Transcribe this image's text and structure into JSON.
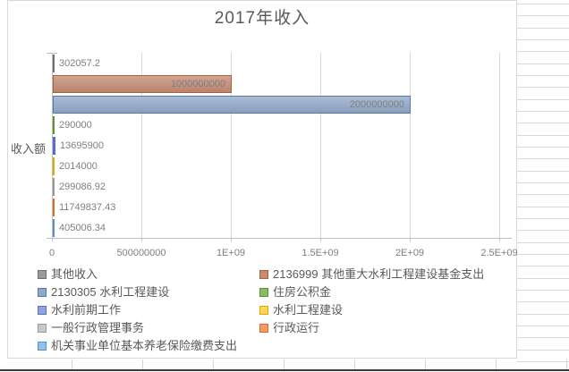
{
  "chart_data": {
    "type": "bar",
    "orientation": "horizontal",
    "title": "2017年收入",
    "xlabel": "",
    "ylabel": "收入额",
    "categories": [
      "其他收入",
      "2136999 其他重大水利工程建设基金支出",
      "2130305 水利工程建设",
      "住房公积金",
      "水利前期工作",
      "水利工程建设",
      "一般行政管理事务",
      "行政运行",
      "机关事业单位基本养老保险缴费支出"
    ],
    "values": [
      302057.2,
      1000000000,
      2000000000,
      290000,
      13695900,
      2014000,
      299086.92,
      11749837.43,
      405006.34
    ],
    "data_labels": [
      "302057.2",
      "1000000000",
      "2000000000",
      "290000",
      "13695900",
      "2014000",
      "299086.92",
      "11749837.43",
      "405006.34"
    ],
    "series_colors": [
      {
        "fill": "#9A9A9A",
        "border": "#6F6F6F"
      },
      {
        "fill": "#C48B76",
        "border": "#B05E33"
      },
      {
        "fill": "#93A8C7",
        "border": "#4F7AAE"
      },
      {
        "fill": "#8ABD66",
        "border": "#5B9338"
      },
      {
        "fill": "#93A4DC",
        "border": "#5671C4"
      },
      {
        "fill": "#FFD55E",
        "border": "#DFA900"
      },
      {
        "fill": "#C9C9C9",
        "border": "#999999"
      },
      {
        "fill": "#F09B69",
        "border": "#DD6E27"
      },
      {
        "fill": "#95C2EA",
        "border": "#5193D1"
      }
    ],
    "x_ticks": {
      "labels": [
        "0",
        "500000000",
        "1E+09",
        "1.5E+09",
        "2E+09",
        "2.5E+09"
      ],
      "values": [
        0,
        500000000,
        1000000000,
        1500000000,
        2000000000,
        2500000000
      ]
    },
    "xlim": [
      0,
      2500000000
    ],
    "grid": true,
    "legend_position": "bottom"
  },
  "colors": {
    "chart_border": "#D9D9D9",
    "gridline": "#D9D9D9",
    "axis": "#BFBFBF",
    "title_text": "#595959",
    "label_text": "#7F7F7F",
    "legend_text": "#595959",
    "sheet_grid": "#D9D9D9",
    "window_edge": "#3C3C3C"
  }
}
